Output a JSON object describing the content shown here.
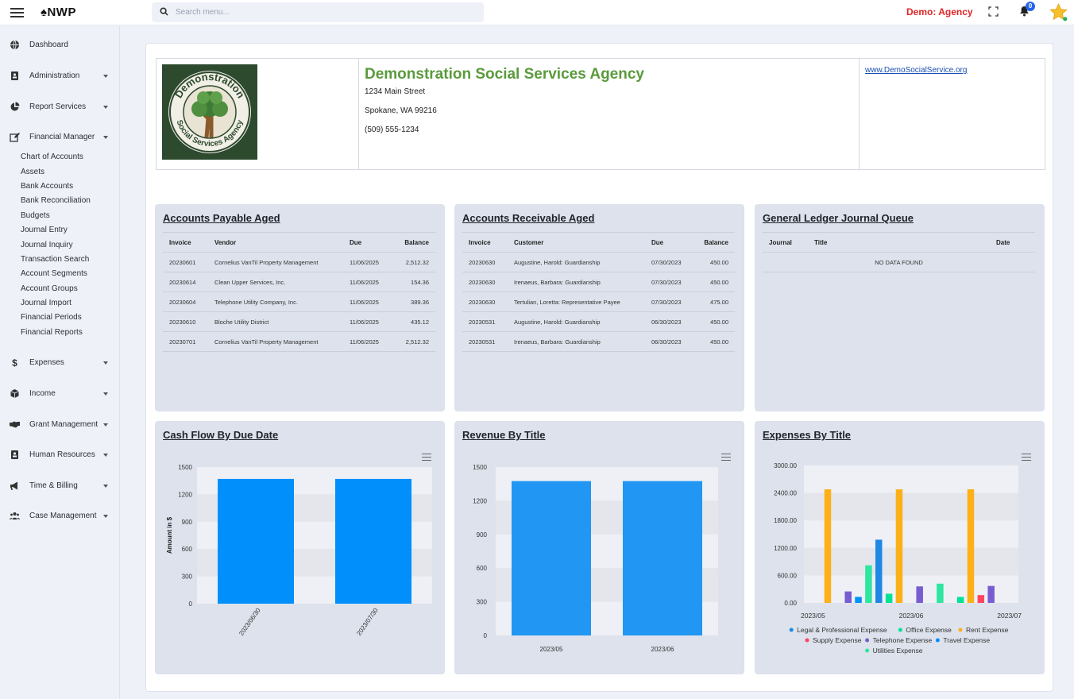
{
  "topbar": {
    "brand": "NWP",
    "search_placeholder": "Search menu...",
    "demo_label": "Demo: Agency",
    "notification_count": "0"
  },
  "sidebar": {
    "items": [
      {
        "label": "Dashboard",
        "icon": "globe-icon"
      },
      {
        "label": "Administration",
        "icon": "id-card-icon"
      },
      {
        "label": "Report Services",
        "icon": "pie-chart-icon"
      },
      {
        "label": "Financial Manager",
        "icon": "edit-icon"
      },
      {
        "label": "Expenses",
        "icon": "dollar-icon"
      },
      {
        "label": "Income",
        "icon": "box-icon"
      },
      {
        "label": "Grant Management",
        "icon": "handshake-icon"
      },
      {
        "label": "Human Resources",
        "icon": "id-card-icon"
      },
      {
        "label": "Time & Billing",
        "icon": "megaphone-icon"
      },
      {
        "label": "Case Management",
        "icon": "users-icon"
      }
    ],
    "financial_sub": [
      "Chart of Accounts",
      "Assets",
      "Bank Accounts",
      "Bank Reconciliation",
      "Budgets",
      "Journal Entry",
      "Journal Inquiry",
      "Transaction Search",
      "Account Segments",
      "Account Groups",
      "Journal Import",
      "Financial Periods",
      "Financial Reports"
    ]
  },
  "header": {
    "logo_top": "Demonstration",
    "logo_bottom": "Social Services Agency",
    "org_name": "Demonstration Social Services Agency",
    "address1": "1234 Main Street",
    "address2": "Spokane, WA 99216",
    "phone": "(509) 555-1234",
    "url": "www.DemoSocialService.org"
  },
  "ap": {
    "title": "Accounts Payable Aged",
    "headers": [
      "Invoice",
      "Vendor",
      "Due",
      "Balance"
    ],
    "rows": [
      [
        "20230601",
        "Cornelius VanTil Property Management",
        "11/06/2025",
        "2,512.32"
      ],
      [
        "20230614",
        "Clean Upper Services, Inc.",
        "11/06/2025",
        "154.36"
      ],
      [
        "20230604",
        "Telephone Utility Company, Inc.",
        "11/06/2025",
        "389.36"
      ],
      [
        "20230610",
        "Bloche Utility District",
        "11/06/2025",
        "435.12"
      ],
      [
        "20230701",
        "Cornelius VanTil Property Management",
        "11/06/2025",
        "2,512.32"
      ]
    ]
  },
  "ar": {
    "title": "Accounts Receivable Aged",
    "headers": [
      "Invoice",
      "Customer",
      "Due",
      "Balance"
    ],
    "rows": [
      [
        "20230630",
        "Augustine, Harold: Guardianship",
        "07/30/2023",
        "450.00"
      ],
      [
        "20230630",
        "Irenaeus, Barbara: Guardianship",
        "07/30/2023",
        "450.00"
      ],
      [
        "20230630",
        "Tertulian, Loretta: Representative Payee",
        "07/30/2023",
        "475.00"
      ],
      [
        "20230531",
        "Augustine, Harold: Guardianship",
        "06/30/2023",
        "450.00"
      ],
      [
        "20230531",
        "Irenaeus, Barbara: Guardianship",
        "06/30/2023",
        "450.00"
      ]
    ]
  },
  "gl": {
    "title": "General Ledger Journal Queue",
    "headers": [
      "Journal",
      "Title",
      "Date"
    ],
    "empty": "NO DATA FOUND"
  },
  "chart_data": [
    {
      "type": "bar",
      "title": "Cash Flow By Due Date",
      "ylabel": "Amount in $",
      "categories": [
        "2023/06/30",
        "2023/07/30"
      ],
      "values": [
        1370,
        1370
      ],
      "yticks": [
        "0",
        "300",
        "600",
        "900",
        "1200",
        "1500"
      ],
      "ylim": [
        0,
        1500
      ],
      "color": "#008ffb"
    },
    {
      "type": "bar",
      "title": "Revenue By Title",
      "ylabel": "",
      "categories": [
        "2023/05",
        "2023/06"
      ],
      "values": [
        1375,
        1375
      ],
      "yticks": [
        "0",
        "300",
        "600",
        "900",
        "1200",
        "1500"
      ],
      "ylim": [
        0,
        1500
      ],
      "color": "#2196f3"
    },
    {
      "type": "bar",
      "title": "Expenses By Title",
      "categories": [
        "2023/05",
        "2023/06",
        "2023/07"
      ],
      "yticks": [
        "0.00",
        "600.00",
        "1200.00",
        "1800.00",
        "2400.00",
        "3000.00"
      ],
      "ylim": [
        0,
        3000
      ],
      "series": [
        {
          "name": "Legal & Professional Expense",
          "color": "#1e88e5",
          "values": [
            0,
            1380,
            0
          ]
        },
        {
          "name": "Office Expense",
          "color": "#00e396",
          "values": [
            0,
            200,
            130
          ]
        },
        {
          "name": "Rent Expense",
          "color": "#feb019",
          "values": [
            2480,
            2480,
            2480
          ]
        },
        {
          "name": "Supply Expense",
          "color": "#ff4560",
          "values": [
            0,
            0,
            170
          ]
        },
        {
          "name": "Telephone Expense",
          "color": "#775dd0",
          "values": [
            250,
            360,
            370
          ]
        },
        {
          "name": "Travel Expense",
          "color": "#008ffb",
          "values": [
            130,
            0,
            0
          ]
        },
        {
          "name": "Utilities Expense",
          "color": "#2ee6a0",
          "values": [
            820,
            420,
            0
          ]
        }
      ]
    }
  ]
}
